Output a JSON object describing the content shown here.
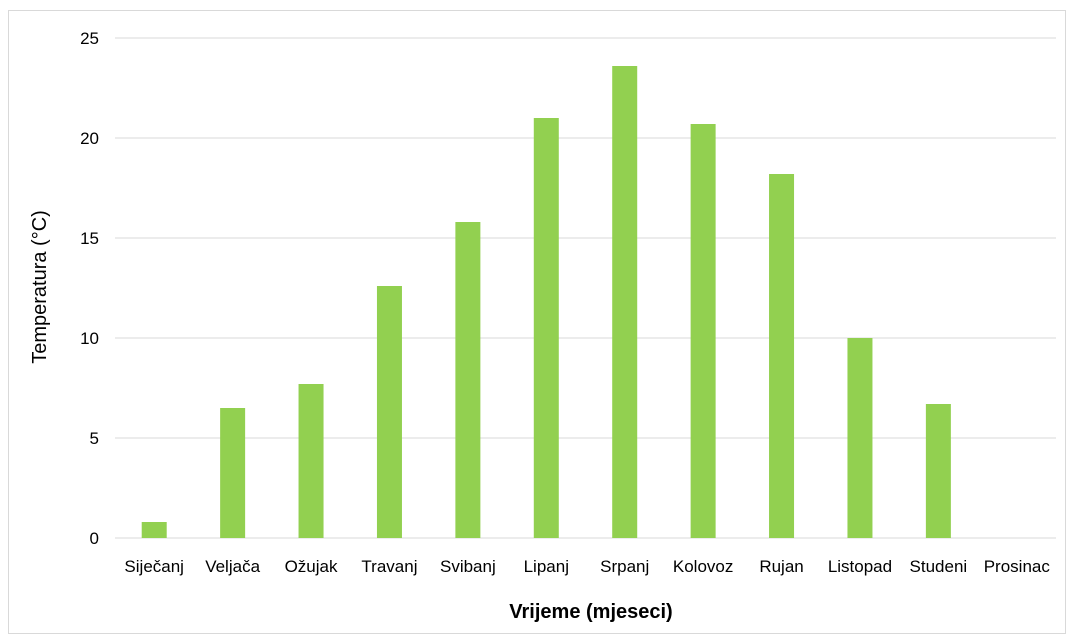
{
  "chart_data": {
    "type": "bar",
    "categories": [
      "Siječanj",
      "Veljača",
      "Ožujak",
      "Travanj",
      "Svibanj",
      "Lipanj",
      "Srpanj",
      "Kolovoz",
      "Rujan",
      "Listopad",
      "Studeni",
      "Prosinac"
    ],
    "values": [
      0.8,
      6.5,
      7.7,
      12.6,
      15.8,
      21.0,
      23.6,
      20.7,
      18.2,
      10.0,
      6.7,
      0
    ],
    "yticks": [
      0,
      5,
      10,
      15,
      20,
      25
    ],
    "title": "",
    "xlabel": "Vrijeme (mjeseci)",
    "ylabel": "Temperatura (°C)",
    "ylim": [
      0,
      25
    ],
    "grid": true,
    "legend": "none",
    "bar_color": "#92d050",
    "grid_color": "#d9d9d9"
  }
}
